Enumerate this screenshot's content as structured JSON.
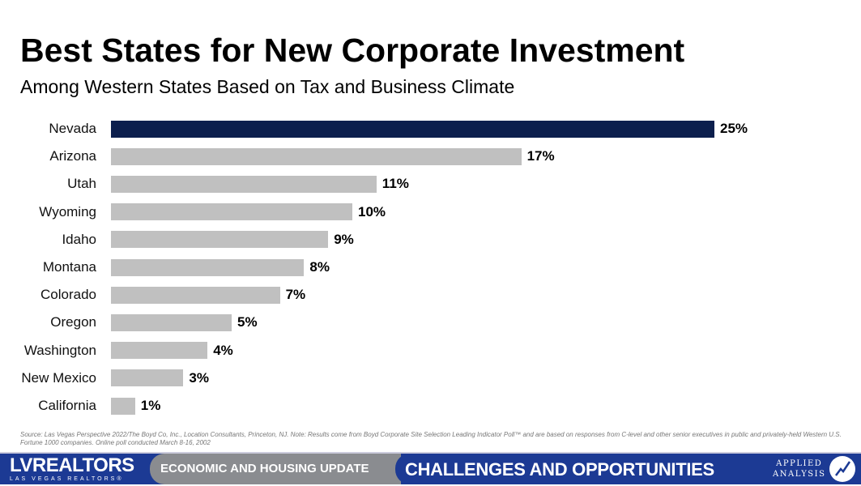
{
  "title": "Best States for New Corporate Investment",
  "subtitle": "Among Western States Based on Tax and Business Climate",
  "source": "Source: Las Vegas Perspective 2022/The Boyd Co, Inc., Location Consultants, Princeton, NJ. Note: Results come from Boyd Corporate Site Selection Leading Indicator Poll™ and are based on responses from C-level and other senior executives in public and privately-held Western U.S. Fortune 1000 companies. Online poll conducted March 8-16, 2002",
  "footer": {
    "logo": "LVREALTORS",
    "logo_sub": "LAS VEGAS REALTORS®",
    "section": "ECONOMIC AND HOUSING UPDATE",
    "headline": "CHALLENGES AND OPPORTUNITIES",
    "brand_line1": "APPLIED",
    "brand_line2": "ANALYSIS"
  },
  "colors": {
    "highlight": "#0c1f4d",
    "default": "#c0c0c0"
  },
  "chart_data": {
    "type": "bar",
    "orientation": "horizontal",
    "categories": [
      "Nevada",
      "Arizona",
      "Utah",
      "Wyoming",
      "Idaho",
      "Montana",
      "Colorado",
      "Oregon",
      "Washington",
      "New Mexico",
      "California"
    ],
    "values": [
      25,
      17,
      11,
      10,
      9,
      8,
      7,
      5,
      4,
      3,
      1
    ],
    "labels": [
      "25%",
      "17%",
      "11%",
      "10%",
      "9%",
      "8%",
      "7%",
      "5%",
      "4%",
      "3%",
      "1%"
    ],
    "highlight_index": 0,
    "xlim": [
      0,
      25
    ],
    "grid": false
  }
}
